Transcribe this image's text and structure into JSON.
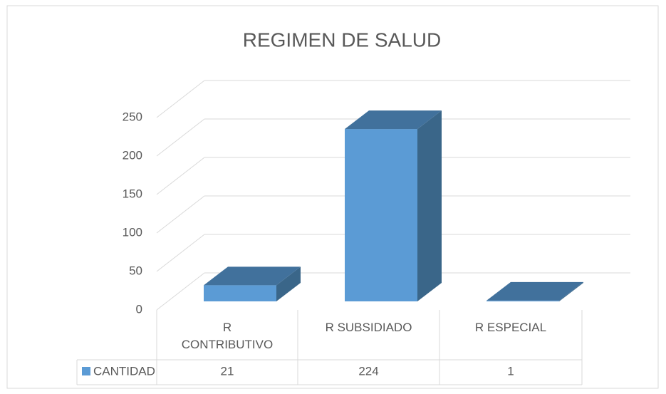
{
  "chart_data": {
    "type": "bar3d",
    "title": "REGIMEN DE SALUD",
    "categories": [
      "R CONTRIBUTIVO",
      "R SUBSIDIADO",
      "R ESPECIAL"
    ],
    "series": [
      {
        "name": "CANTIDAD",
        "color": "#5b9bd5",
        "values": [
          21,
          224,
          1
        ]
      }
    ],
    "ylim": [
      0,
      250
    ],
    "yticks": [
      0,
      50,
      100,
      150,
      200,
      250
    ],
    "grid": true,
    "legend": "table"
  }
}
